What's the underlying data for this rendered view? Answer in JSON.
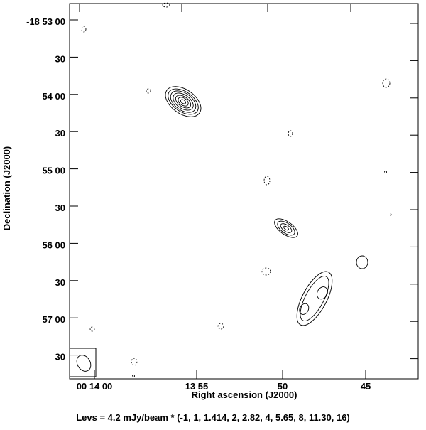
{
  "figure": {
    "y_label": "Declination (J2000)",
    "x_label": "Right ascension (J2000)",
    "caption": "Levs = 4.2 mJy/beam * (-1, 1, 1.414, 2, 2.82, 4, 5.65, 8, 11.30, 16)",
    "y_ticks": [
      "-18 53 00",
      "30",
      "54 00",
      "30",
      "55 00",
      "30",
      "56 00",
      "30",
      "57 00",
      "30"
    ],
    "x_ticks": [
      "00 14 00",
      "13 55",
      "50",
      "45"
    ]
  }
}
